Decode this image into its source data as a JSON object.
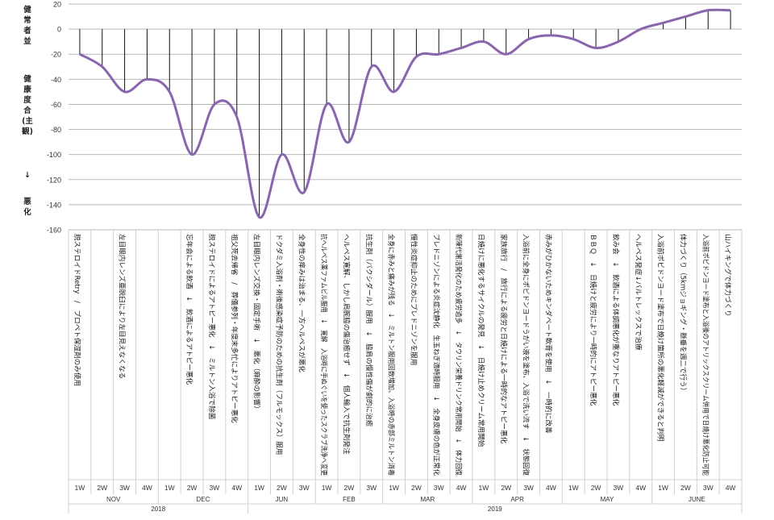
{
  "chart_data": {
    "type": "line",
    "ylabel_top": "健常者並",
    "ylabel_mid": "健康度合(主観)",
    "ylabel_arrow": "↓",
    "ylabel_bottom": "悪化",
    "ylim": [
      -160,
      20
    ],
    "yticks": [
      20,
      0,
      -20,
      -40,
      -60,
      -80,
      -100,
      -120,
      -140,
      -160
    ],
    "grid": true,
    "line_color": "#8a63b6",
    "weeks": [
      "1W",
      "2W",
      "3W",
      "4W",
      "1W",
      "2W",
      "3W",
      "4W",
      "1W",
      "2W",
      "3W",
      "1W",
      "2W",
      "3W",
      "1W",
      "2W",
      "3W",
      "4W",
      "1W",
      "2W",
      "3W",
      "4W",
      "1W",
      "2W",
      "3W",
      "4W",
      "1W",
      "2W",
      "3W",
      "4W"
    ],
    "months": [
      {
        "label": "NOV",
        "span": 4
      },
      {
        "label": "DEC",
        "span": 4
      },
      {
        "label": "JUN",
        "span": 3
      },
      {
        "label": "FEB",
        "span": 3
      },
      {
        "label": "MAR",
        "span": 4
      },
      {
        "label": "APR",
        "span": 4
      },
      {
        "label": "MAY",
        "span": 4
      },
      {
        "label": "JUNE",
        "span": 4
      }
    ],
    "years": [
      {
        "label": "2018",
        "span": 8
      },
      {
        "label": "2019",
        "span": 22
      }
    ],
    "values": [
      -20,
      -30,
      -50,
      -40,
      -50,
      -100,
      -60,
      -70,
      -150,
      -100,
      -130,
      -60,
      -90,
      -30,
      -50,
      -22,
      -20,
      -15,
      -10,
      -20,
      -8,
      -5,
      -8,
      -15,
      -10,
      0,
      5,
      10,
      15,
      15
    ],
    "annotations": [
      "脱ステロイドRetry　/　プロペト保湿剤のみ使用",
      "",
      "左目眼内レンズ亜脱臼により左目見えなくなる",
      "",
      "",
      "忘年会による飲酒　↓　飲酒によるアトピー悪化",
      "脱ステロイドによるアトピー悪化　↓　ミルトン入浴で除菌",
      "祖父死去帰省　/　葬儀参列・年度末多忙によりアトピー悪化",
      "左目眼内レンズ交換・固定手術　↓　悪化（麻酔の影響）",
      "ドクダミ入浴剤・術後感染症予防のための抗生剤（フルモックス）服用",
      "全身性の痒みは治まる、一方ヘルペスが悪化",
      "抗ヘルペス薬ファムビル服用　↓　寛解　入浴時に手ぬぐいを使ったスクラブ洗浄へ変更",
      "ヘルペス寛解、しかし肩腕脇の傷治癒せず　↓　個人輸入で抗生剤発注",
      "抗生剤（バクシダール）服用　↓　脇肩の慢性傷が劇的に治癒",
      "全身に赤みと痛みが残る　↓　ミルトン服用回数増加、入浴時の赤部ミルトン消毒",
      "慢性炎症抑止のためにプレドニゾンを服用",
      "プレドニゾンによる炎症沈静化　生玉ねぎ適時服用　↓　全身皮膚の色が正常化",
      "新陳代謝活発化のため疲労過多　↓　タウリン栄養ドリンク常用開始　↓　体力回復",
      "日焼けに悪化するサイクルの発見　↓　日焼け止めクリーム常用開始",
      "家族旅行　/　旅行による疲労と日焼けによる一時的なアトピー悪化",
      "入浴前に全身にポビドンヨードうがい液を塗布、入浴で洗い流す　↓　状態回復",
      "赤みがひかないためキンダベート軟膏を使用　↓　一時的に改善",
      "",
      "ＢＢＱ　↓　日焼けと疲労により一時的にアトピー悪化",
      "飲み会　↓　飲酒による体調悪化が重なりアトピー悪化",
      "ヘルペス発症↓バルトレックスで治療",
      "入浴前ポビドンヨード塗布で日焼け箇所の悪化軽減ができると判明",
      "体力づくり（5kmジョギング・懸垂を週二で行う）",
      "入浴前ポビドンヨード塗布と入浴後のアトリックスクリーム併用で日焼け悪化防止可能",
      "山ハイキングで体力づくり"
    ]
  }
}
